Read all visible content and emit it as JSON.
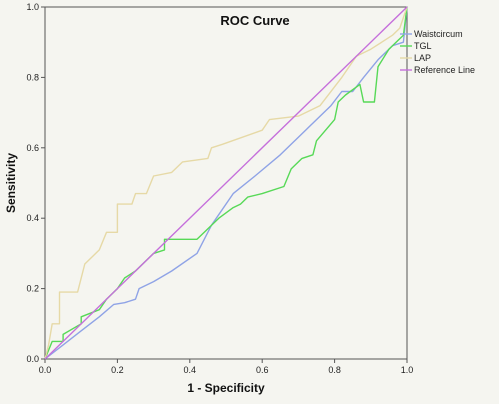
{
  "chart_data": {
    "type": "line",
    "title": "ROC Curve",
    "xlabel": "1 - Specificity",
    "ylabel": "Sensitivity",
    "xlim": [
      0,
      1
    ],
    "ylim": [
      0,
      1
    ],
    "x_ticks": [
      "0.0",
      "0.2",
      "0.4",
      "0.6",
      "0.8",
      "1.0"
    ],
    "y_ticks": [
      "0.0",
      "0.2",
      "0.4",
      "0.6",
      "0.8",
      "1.0"
    ],
    "grid": false,
    "legend_position": "top-right",
    "series": [
      {
        "name": "Waistcircum",
        "color": "#8fa3e6",
        "points": [
          [
            0,
            0
          ],
          [
            0.05,
            0.04
          ],
          [
            0.1,
            0.08
          ],
          [
            0.15,
            0.12
          ],
          [
            0.19,
            0.155
          ],
          [
            0.22,
            0.16
          ],
          [
            0.25,
            0.17
          ],
          [
            0.26,
            0.2
          ],
          [
            0.3,
            0.22
          ],
          [
            0.35,
            0.25
          ],
          [
            0.42,
            0.3
          ],
          [
            0.46,
            0.38
          ],
          [
            0.52,
            0.47
          ],
          [
            0.58,
            0.52
          ],
          [
            0.65,
            0.58
          ],
          [
            0.72,
            0.65
          ],
          [
            0.79,
            0.72
          ],
          [
            0.82,
            0.76
          ],
          [
            0.85,
            0.76
          ],
          [
            0.88,
            0.8
          ],
          [
            0.92,
            0.85
          ],
          [
            0.96,
            0.89
          ],
          [
            0.99,
            0.9
          ],
          [
            1.0,
            1.0
          ]
        ]
      },
      {
        "name": "TGL",
        "color": "#57d957",
        "points": [
          [
            0,
            0
          ],
          [
            0.02,
            0.05
          ],
          [
            0.05,
            0.05
          ],
          [
            0.05,
            0.07
          ],
          [
            0.1,
            0.1
          ],
          [
            0.1,
            0.12
          ],
          [
            0.15,
            0.14
          ],
          [
            0.17,
            0.17
          ],
          [
            0.2,
            0.2
          ],
          [
            0.22,
            0.23
          ],
          [
            0.25,
            0.25
          ],
          [
            0.28,
            0.28
          ],
          [
            0.3,
            0.3
          ],
          [
            0.33,
            0.31
          ],
          [
            0.33,
            0.34
          ],
          [
            0.42,
            0.34
          ],
          [
            0.45,
            0.37
          ],
          [
            0.48,
            0.4
          ],
          [
            0.52,
            0.43
          ],
          [
            0.54,
            0.44
          ],
          [
            0.56,
            0.46
          ],
          [
            0.6,
            0.47
          ],
          [
            0.66,
            0.49
          ],
          [
            0.68,
            0.54
          ],
          [
            0.71,
            0.57
          ],
          [
            0.74,
            0.58
          ],
          [
            0.75,
            0.62
          ],
          [
            0.8,
            0.68
          ],
          [
            0.81,
            0.73
          ],
          [
            0.83,
            0.75
          ],
          [
            0.87,
            0.78
          ],
          [
            0.88,
            0.73
          ],
          [
            0.91,
            0.73
          ],
          [
            0.92,
            0.83
          ],
          [
            0.95,
            0.88
          ],
          [
            0.97,
            0.9
          ],
          [
            0.99,
            0.92
          ],
          [
            1.0,
            1.0
          ]
        ]
      },
      {
        "name": "LAP",
        "color": "#e6d9a6",
        "points": [
          [
            0,
            0
          ],
          [
            0.01,
            0.04
          ],
          [
            0.02,
            0.1
          ],
          [
            0.04,
            0.1
          ],
          [
            0.04,
            0.19
          ],
          [
            0.09,
            0.19
          ],
          [
            0.11,
            0.27
          ],
          [
            0.15,
            0.31
          ],
          [
            0.17,
            0.36
          ],
          [
            0.2,
            0.36
          ],
          [
            0.2,
            0.44
          ],
          [
            0.24,
            0.44
          ],
          [
            0.25,
            0.47
          ],
          [
            0.28,
            0.47
          ],
          [
            0.3,
            0.52
          ],
          [
            0.35,
            0.53
          ],
          [
            0.38,
            0.56
          ],
          [
            0.45,
            0.57
          ],
          [
            0.46,
            0.6
          ],
          [
            0.49,
            0.61
          ],
          [
            0.6,
            0.65
          ],
          [
            0.62,
            0.68
          ],
          [
            0.7,
            0.69
          ],
          [
            0.76,
            0.72
          ],
          [
            0.82,
            0.8
          ],
          [
            0.86,
            0.86
          ],
          [
            0.9,
            0.88
          ],
          [
            0.93,
            0.9
          ],
          [
            0.96,
            0.92
          ],
          [
            0.98,
            0.94
          ],
          [
            1.0,
            1.0
          ]
        ]
      },
      {
        "name": "Reference Line",
        "color": "#c56fdb",
        "points": [
          [
            0,
            0
          ],
          [
            1,
            1
          ]
        ]
      }
    ]
  }
}
